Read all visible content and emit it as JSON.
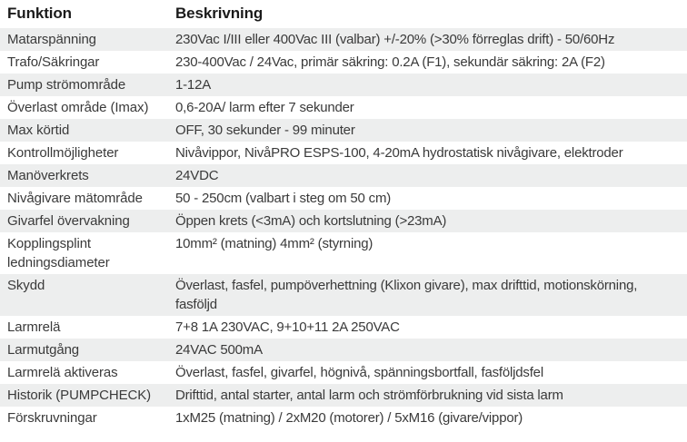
{
  "colors": {
    "stripe": "#edeeee",
    "body_text": "#3a3a3a",
    "header_text": "#1b1b1b",
    "background": "#ffffff"
  },
  "table": {
    "columns": [
      {
        "label": "Funktion"
      },
      {
        "label": "Beskrivning"
      }
    ],
    "rows": [
      {
        "funktion": "Matarspänning",
        "beskrivning": "230Vac I/III eller 400Vac III (valbar) +/-20% (>30% förreglas drift) - 50/60Hz"
      },
      {
        "funktion": "Trafo/Säkringar",
        "beskrivning": "230-400Vac / 24Vac, primär säkring: 0.2A (F1), sekundär säkring: 2A (F2)"
      },
      {
        "funktion": "Pump strömområde",
        "beskrivning": "1-12A"
      },
      {
        "funktion": "Överlast område (Imax)",
        "beskrivning": "0,6-20A/ larm efter 7 sekunder"
      },
      {
        "funktion": "Max körtid",
        "beskrivning": "OFF, 30 sekunder - 99 minuter"
      },
      {
        "funktion": "Kontrollmöjligheter",
        "beskrivning": "Nivåvippor, NivåPRO ESPS-100, 4-20mA hydrostatisk nivågivare, elektroder"
      },
      {
        "funktion": "Manöverkrets",
        "beskrivning": "24VDC"
      },
      {
        "funktion": "Nivågivare mätområde",
        "beskrivning": "50 - 250cm (valbart i steg om 50 cm)"
      },
      {
        "funktion": "Givarfel övervakning",
        "beskrivning": "Öppen krets (<3mA) och kortslutning (>23mA)"
      },
      {
        "funktion": "Kopplingsplint ledningsdiameter",
        "beskrivning": "10mm² (matning) 4mm² (styrning)"
      },
      {
        "funktion": "Skydd",
        "beskrivning": "Överlast, fasfel, pumpöverhettning (Klixon givare), max drifttid, motionskörning, fasföljd"
      },
      {
        "funktion": "Larmrelä",
        "beskrivning": "7+8 1A 230VAC, 9+10+11 2A 250VAC"
      },
      {
        "funktion": "Larmutgång",
        "beskrivning": "24VAC 500mA"
      },
      {
        "funktion": "Larmrelä aktiveras",
        "beskrivning": "Överlast, fasfel, givarfel, högnivå, spänningsbortfall, fasföljdsfel"
      },
      {
        "funktion": "Historik (PUMPCHECK)",
        "beskrivning": "Drifttid, antal starter, antal larm och strömförbrukning vid sista larm"
      },
      {
        "funktion": "Förskruvningar",
        "beskrivning": "1xM25 (matning) / 2xM20 (motorer) / 5xM16 (givare/vippor)"
      }
    ]
  }
}
